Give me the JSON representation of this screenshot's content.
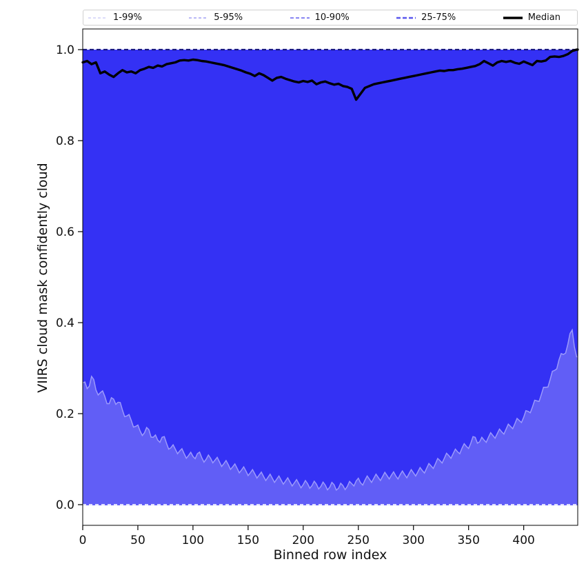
{
  "figure": {
    "title": "",
    "xlabel": "Binned row index",
    "ylabel": "VIIRS cloud mask confidently cloud"
  },
  "legend": {
    "entries": [
      {
        "label": "1-99%",
        "color": "#dcdcf9",
        "dash": "4 3",
        "width": 2
      },
      {
        "label": "5-95%",
        "color": "#b9b8f6",
        "dash": "4 3",
        "width": 2
      },
      {
        "label": "10-90%",
        "color": "#8886f2",
        "dash": "5 3",
        "width": 2
      },
      {
        "label": "25-75%",
        "color": "#5957ee",
        "dash": "6 3",
        "width": 2.5
      },
      {
        "label": "Median",
        "color": "#000000",
        "dash": "",
        "width": 3.5
      }
    ]
  },
  "colors": {
    "band_dark": "#3431f4",
    "band_light": "#615ef6",
    "band_edge": "#9c9afc",
    "zero_line": "#dedefd",
    "one_line": "#15157e",
    "median": "#000000",
    "spine": "#000000",
    "tick_text": "#111111"
  },
  "chart_data": {
    "type": "area",
    "title": "",
    "xlabel": "Binned row index",
    "ylabel": "VIIRS cloud mask confidently cloud",
    "xlim": [
      0,
      449
    ],
    "ylim": [
      -0.045,
      1.045
    ],
    "grid": false,
    "legend_position": "top, expanded, 5 columns",
    "legend_entries": [
      "1-99%",
      "5-95%",
      "10-90%",
      "25-75%",
      "Median"
    ],
    "x_ticks": [
      0,
      50,
      100,
      150,
      200,
      250,
      300,
      350,
      400
    ],
    "x_tick_labels": [
      "0",
      "50",
      "100",
      "150",
      "200",
      "250",
      "300",
      "350",
      "400"
    ],
    "y_ticks": [
      0.0,
      0.2,
      0.4,
      0.6,
      0.8,
      1.0
    ],
    "y_tick_labels": [
      "0.0",
      "0.2",
      "0.4",
      "0.6",
      "0.8",
      "1.0"
    ],
    "band_noise_amplitude": 0.008,
    "upper_percentile_level": 1.0,
    "lower_percentile_level": 0.0,
    "x": [
      0,
      4,
      8,
      12,
      16,
      20,
      24,
      28,
      32,
      36,
      40,
      44,
      48,
      52,
      56,
      60,
      64,
      68,
      72,
      76,
      80,
      84,
      88,
      92,
      96,
      100,
      104,
      108,
      112,
      116,
      120,
      124,
      128,
      132,
      136,
      140,
      144,
      148,
      152,
      156,
      160,
      164,
      168,
      172,
      176,
      180,
      184,
      188,
      192,
      196,
      200,
      204,
      208,
      212,
      216,
      220,
      224,
      228,
      232,
      236,
      240,
      244,
      248,
      252,
      256,
      260,
      264,
      268,
      272,
      276,
      280,
      284,
      288,
      292,
      296,
      300,
      304,
      308,
      312,
      316,
      320,
      324,
      328,
      332,
      336,
      340,
      344,
      348,
      352,
      356,
      360,
      364,
      368,
      372,
      376,
      380,
      384,
      388,
      392,
      396,
      400,
      404,
      408,
      412,
      416,
      420,
      424,
      428,
      432,
      436,
      440,
      444,
      448
    ],
    "series": [
      {
        "name": "p10_band_lower_boundary",
        "values": [
          0.268,
          0.255,
          0.282,
          0.252,
          0.246,
          0.238,
          0.222,
          0.232,
          0.225,
          0.208,
          0.195,
          0.185,
          0.172,
          0.162,
          0.158,
          0.165,
          0.148,
          0.142,
          0.148,
          0.135,
          0.125,
          0.122,
          0.118,
          0.112,
          0.108,
          0.106,
          0.112,
          0.103,
          0.1,
          0.102,
          0.098,
          0.094,
          0.09,
          0.088,
          0.083,
          0.08,
          0.076,
          0.074,
          0.07,
          0.068,
          0.065,
          0.062,
          0.06,
          0.058,
          0.056,
          0.054,
          0.052,
          0.05,
          0.048,
          0.046,
          0.044,
          0.046,
          0.042,
          0.045,
          0.04,
          0.043,
          0.038,
          0.044,
          0.036,
          0.042,
          0.04,
          0.046,
          0.052,
          0.048,
          0.054,
          0.056,
          0.058,
          0.06,
          0.062,
          0.064,
          0.065,
          0.063,
          0.066,
          0.066,
          0.068,
          0.07,
          0.072,
          0.075,
          0.08,
          0.085,
          0.09,
          0.097,
          0.102,
          0.108,
          0.112,
          0.116,
          0.124,
          0.128,
          0.135,
          0.148,
          0.138,
          0.142,
          0.148,
          0.152,
          0.156,
          0.16,
          0.166,
          0.172,
          0.178,
          0.185,
          0.192,
          0.205,
          0.215,
          0.228,
          0.242,
          0.258,
          0.275,
          0.295,
          0.318,
          0.33,
          0.352,
          0.384,
          0.325
        ]
      },
      {
        "name": "median",
        "values": [
          0.972,
          0.975,
          0.968,
          0.972,
          0.948,
          0.952,
          0.945,
          0.94,
          0.948,
          0.955,
          0.95,
          0.952,
          0.948,
          0.955,
          0.958,
          0.962,
          0.96,
          0.965,
          0.963,
          0.968,
          0.97,
          0.972,
          0.976,
          0.977,
          0.976,
          0.978,
          0.977,
          0.975,
          0.974,
          0.972,
          0.97,
          0.968,
          0.966,
          0.963,
          0.96,
          0.957,
          0.954,
          0.95,
          0.947,
          0.942,
          0.948,
          0.944,
          0.938,
          0.932,
          0.938,
          0.94,
          0.936,
          0.933,
          0.93,
          0.928,
          0.931,
          0.929,
          0.932,
          0.924,
          0.928,
          0.93,
          0.926,
          0.923,
          0.925,
          0.92,
          0.918,
          0.914,
          0.89,
          0.903,
          0.916,
          0.92,
          0.924,
          0.926,
          0.928,
          0.93,
          0.932,
          0.934,
          0.936,
          0.938,
          0.94,
          0.942,
          0.944,
          0.946,
          0.948,
          0.95,
          0.952,
          0.954,
          0.953,
          0.955,
          0.955,
          0.957,
          0.958,
          0.96,
          0.962,
          0.964,
          0.968,
          0.975,
          0.97,
          0.965,
          0.972,
          0.975,
          0.973,
          0.975,
          0.971,
          0.969,
          0.974,
          0.97,
          0.966,
          0.975,
          0.974,
          0.976,
          0.984,
          0.985,
          0.984,
          0.986,
          0.99,
          0.997,
          1.0
        ]
      },
      {
        "name": "upper_percentiles_75_90_95_99",
        "values_constant": 1.0
      },
      {
        "name": "lower_percentiles_01_05",
        "values_constant": 0.0
      }
    ]
  }
}
